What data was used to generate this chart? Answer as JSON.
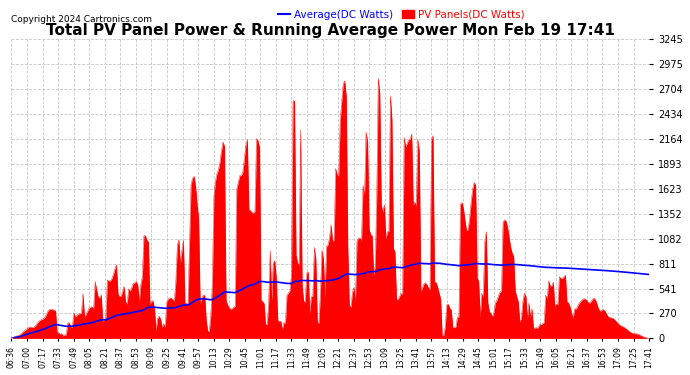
{
  "title": "Total PV Panel Power & Running Average Power Mon Feb 19 17:41",
  "copyright": "Copyright 2024 Cartronics.com",
  "legend_avg": "Average(DC Watts)",
  "legend_pv": "PV Panels(DC Watts)",
  "avg_color": "blue",
  "pv_color": "red",
  "background_color": "#ffffff",
  "grid_color": "#bbbbbb",
  "title_fontsize": 11,
  "yticks": [
    0.0,
    270.4,
    540.9,
    811.3,
    1081.7,
    1352.2,
    1622.6,
    1893.1,
    2163.5,
    2433.9,
    2704.4,
    2974.8,
    3245.2
  ],
  "ymax": 3245.2,
  "ymin": 0.0,
  "xtick_labels": [
    "06:36",
    "07:00",
    "07:17",
    "07:33",
    "07:49",
    "08:05",
    "08:21",
    "08:37",
    "08:53",
    "09:09",
    "09:25",
    "09:41",
    "09:57",
    "10:13",
    "10:29",
    "10:45",
    "11:01",
    "11:17",
    "11:33",
    "11:49",
    "12:05",
    "12:21",
    "12:37",
    "12:53",
    "13:09",
    "13:25",
    "13:41",
    "13:57",
    "14:13",
    "14:29",
    "14:45",
    "15:01",
    "15:17",
    "15:33",
    "15:49",
    "16:05",
    "16:21",
    "16:37",
    "16:53",
    "17:09",
    "17:25",
    "17:41"
  ],
  "n_fine": 420,
  "seed": 42
}
